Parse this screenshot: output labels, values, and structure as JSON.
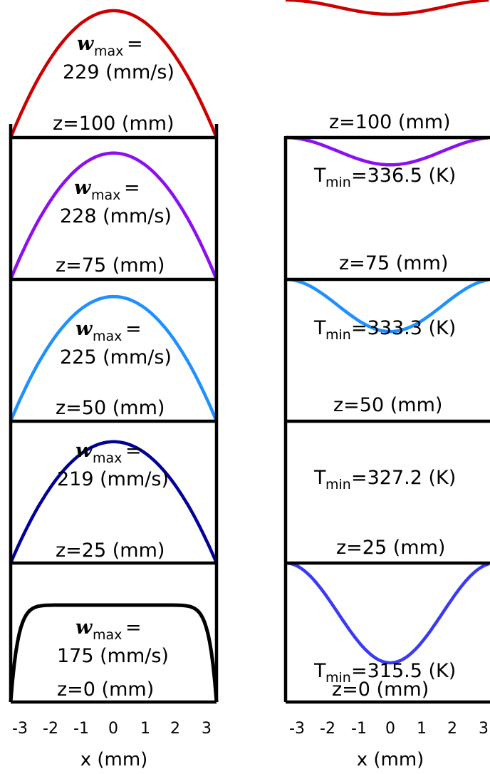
{
  "chart_data": [
    {
      "type": "line",
      "xlabel": "x (mm)",
      "x_ticks": [
        "-3",
        "-2",
        "-1",
        "0",
        "1",
        "2",
        "3"
      ],
      "xlim": [
        -3.2,
        3.2
      ],
      "panels": [
        {
          "z_label": "z=100 (mm)",
          "w_symbol": "w",
          "w_sub": "max",
          "w_eq": "=",
          "w_value": "229 (mm/s)",
          "color": "#cc0000",
          "shape": "parabolic",
          "peak": 229
        },
        {
          "z_label": "z=75 (mm)",
          "w_symbol": "w",
          "w_sub": "max",
          "w_eq": "=",
          "w_value": "228 (mm/s)",
          "color": "#8b10f0",
          "shape": "parabolic",
          "peak": 228
        },
        {
          "z_label": "z=50 (mm)",
          "w_symbol": "w",
          "w_sub": "max",
          "w_eq": "=",
          "w_value": "225 (mm/s)",
          "color": "#1e90ff",
          "shape": "parabolic",
          "peak": 225
        },
        {
          "z_label": "z=25 (mm)",
          "w_symbol": "w",
          "w_sub": "max",
          "w_eq": "=",
          "w_value": "219 (mm/s)",
          "color": "#000099",
          "shape": "parabolic",
          "peak": 219
        },
        {
          "z_label": "z=0 (mm)",
          "w_symbol": "w",
          "w_sub": "max",
          "w_eq": "=",
          "w_value": "175 (mm/s)",
          "color": "#000000",
          "shape": "plug",
          "peak": 175
        }
      ]
    },
    {
      "type": "line",
      "xlabel": "x (mm)",
      "x_ticks": [
        "-3",
        "-2",
        "-1",
        "0",
        "1",
        "2",
        "3"
      ],
      "xlim": [
        -3.2,
        3.2
      ],
      "panels": [
        {
          "z_label": "z=100 (mm)",
          "t_symbol": "T",
          "t_sub": "min",
          "t_value": "=336.5 (K)",
          "color": "#cc0000",
          "min": 336.5
        },
        {
          "z_label": "z=75 (mm)",
          "t_symbol": "T",
          "t_sub": "min",
          "t_value": "=333.3 (K)",
          "color": "#8b10f0",
          "min": 333.3
        },
        {
          "z_label": "z=50 (mm)",
          "t_symbol": "T",
          "t_sub": "min",
          "t_value": "=327.2 (K)",
          "color": "#1e90ff",
          "min": 327.2
        },
        {
          "z_label": "z=25 (mm)",
          "t_symbol": "",
          "t_sub": "",
          "t_value": "",
          "color": "",
          "min": null
        },
        {
          "z_label": "z=0 (mm)",
          "t_symbol": "T",
          "t_sub": "min",
          "t_value": "=315.5 (K)",
          "color": "#3a3af5",
          "min": 315.5
        }
      ]
    }
  ]
}
